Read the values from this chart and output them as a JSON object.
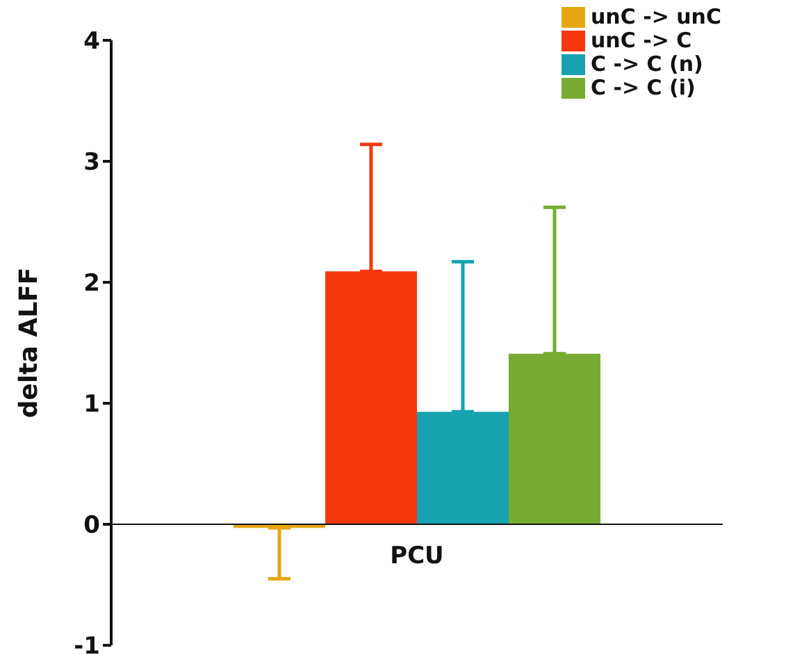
{
  "chart_data": {
    "type": "bar",
    "ylabel": "delta ALFF",
    "categories": [
      "PCU"
    ],
    "series": [
      {
        "name": "unC -> unC",
        "color": "#e5a812",
        "values": [
          -0.03
        ],
        "errors": [
          [
            -0.45,
            -0.03
          ]
        ]
      },
      {
        "name": "unC -> C",
        "color": "#f6380e",
        "values": [
          2.09
        ],
        "errors": [
          [
            2.09,
            3.14
          ]
        ]
      },
      {
        "name": "C -> C (n)",
        "color": "#17a2b0",
        "values": [
          0.93
        ],
        "errors": [
          [
            0.93,
            2.17
          ]
        ]
      },
      {
        "name": "C -> C (i)",
        "color": "#78ab32",
        "values": [
          1.41
        ],
        "errors": [
          [
            1.41,
            2.62
          ]
        ]
      }
    ],
    "ylim": [
      -1,
      4
    ],
    "yticks": [
      -1,
      0,
      1,
      2,
      3,
      4
    ],
    "legend": "top right"
  }
}
